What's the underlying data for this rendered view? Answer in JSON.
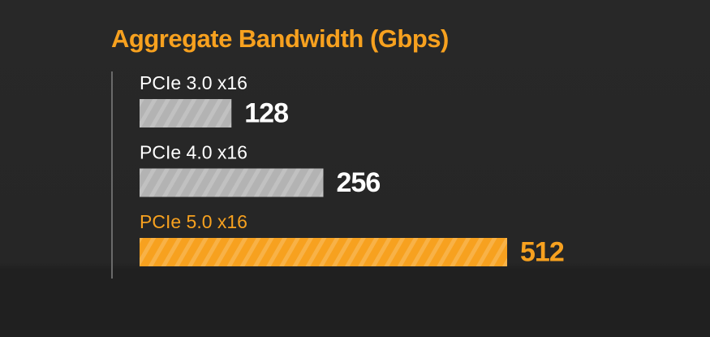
{
  "chart_data": {
    "type": "bar",
    "orientation": "horizontal",
    "title": "Aggregate Bandwidth (Gbps)",
    "categories": [
      "PCIe 3.0 x16",
      "PCIe 4.0 x16",
      "PCIe 5.0 x16"
    ],
    "values": [
      128,
      256,
      512
    ],
    "colors": [
      "#b3b3b3",
      "#b3b3b3",
      "#f7a11f"
    ],
    "label_colors": [
      "#ffffff",
      "#ffffff",
      "#f7a11f"
    ],
    "xlim": [
      0,
      512
    ]
  }
}
